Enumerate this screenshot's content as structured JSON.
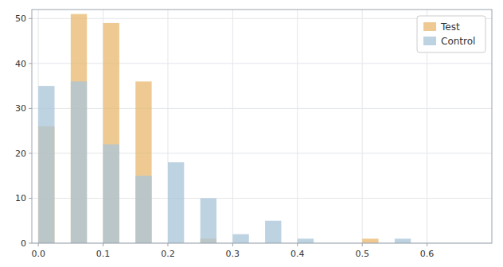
{
  "chart_data": {
    "type": "histogram",
    "bins": [
      0.0,
      0.025,
      0.05,
      0.075,
      0.1,
      0.125,
      0.15,
      0.175,
      0.2,
      0.225,
      0.25,
      0.275,
      0.3,
      0.325,
      0.35,
      0.375,
      0.4,
      0.425,
      0.45,
      0.475,
      0.5,
      0.525,
      0.55,
      0.575,
      0.6
    ],
    "series": [
      {
        "name": "Test",
        "color": "#e8b86d",
        "values": [
          26,
          0,
          51,
          0,
          49,
          0,
          36,
          0,
          0,
          0,
          1,
          0,
          0,
          0,
          0,
          0,
          0,
          0,
          0,
          0,
          1,
          0,
          0,
          0
        ]
      },
      {
        "name": "Control",
        "color": "#a8c4d8",
        "values": [
          35,
          0,
          36,
          0,
          22,
          0,
          15,
          0,
          18,
          0,
          10,
          0,
          2,
          0,
          5,
          0,
          1,
          0,
          0,
          0,
          0,
          0,
          1,
          0
        ]
      }
    ],
    "xlim": [
      -0.01,
      0.7
    ],
    "ylim": [
      0,
      52
    ],
    "xticks": [
      {
        "value": 0,
        "label": "0.0"
      },
      0.1,
      0.2,
      0.3,
      0.4,
      0.5,
      0.6
    ],
    "yticks": [
      0,
      10,
      20,
      30,
      40,
      50
    ],
    "grid": true,
    "legend": "upper right"
  }
}
